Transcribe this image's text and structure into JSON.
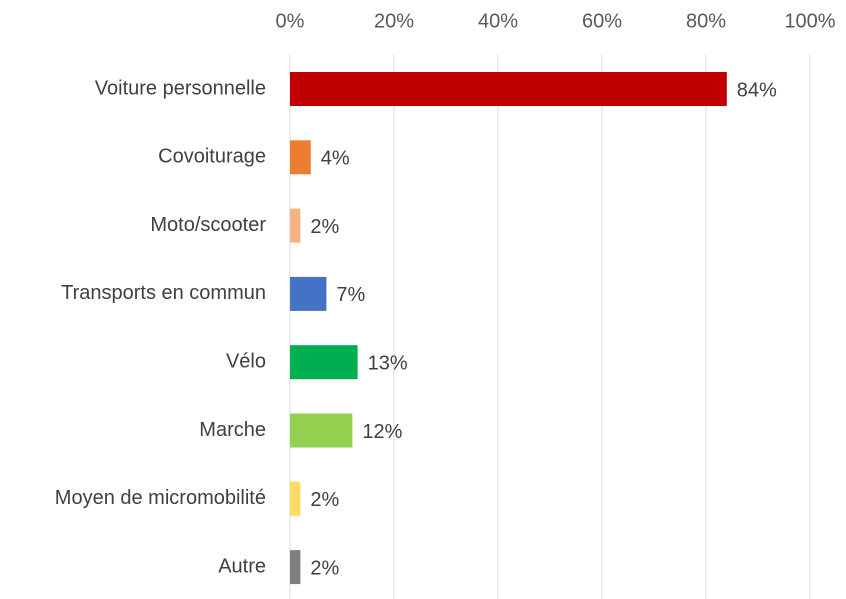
{
  "chart_data": {
    "type": "hbar",
    "categories": [
      "Voiture personnelle",
      "Covoiturage",
      "Moto/scooter",
      "Transports en commun",
      "Vélo",
      "Marche",
      "Moyen de micromobilité",
      "Autre"
    ],
    "values": [
      84,
      4,
      2,
      7,
      13,
      12,
      2,
      2
    ],
    "value_labels": [
      "84%",
      "4%",
      "2%",
      "7%",
      "13%",
      "12%",
      "2%",
      "2%"
    ],
    "colors": [
      "#c00000",
      "#ed7d31",
      "#f4b183",
      "#4472c4",
      "#00b050",
      "#92d050",
      "#ffd966",
      "#7f7f7f"
    ],
    "xlim": [
      0,
      100
    ],
    "xticks": [
      {
        "value": 0,
        "label": "0%"
      },
      {
        "value": 20,
        "label": "20%"
      },
      {
        "value": 40,
        "label": "40%"
      },
      {
        "value": 60,
        "label": "60%"
      },
      {
        "value": 80,
        "label": "80%"
      },
      {
        "value": 100,
        "label": "100%"
      }
    ],
    "grid": true
  }
}
